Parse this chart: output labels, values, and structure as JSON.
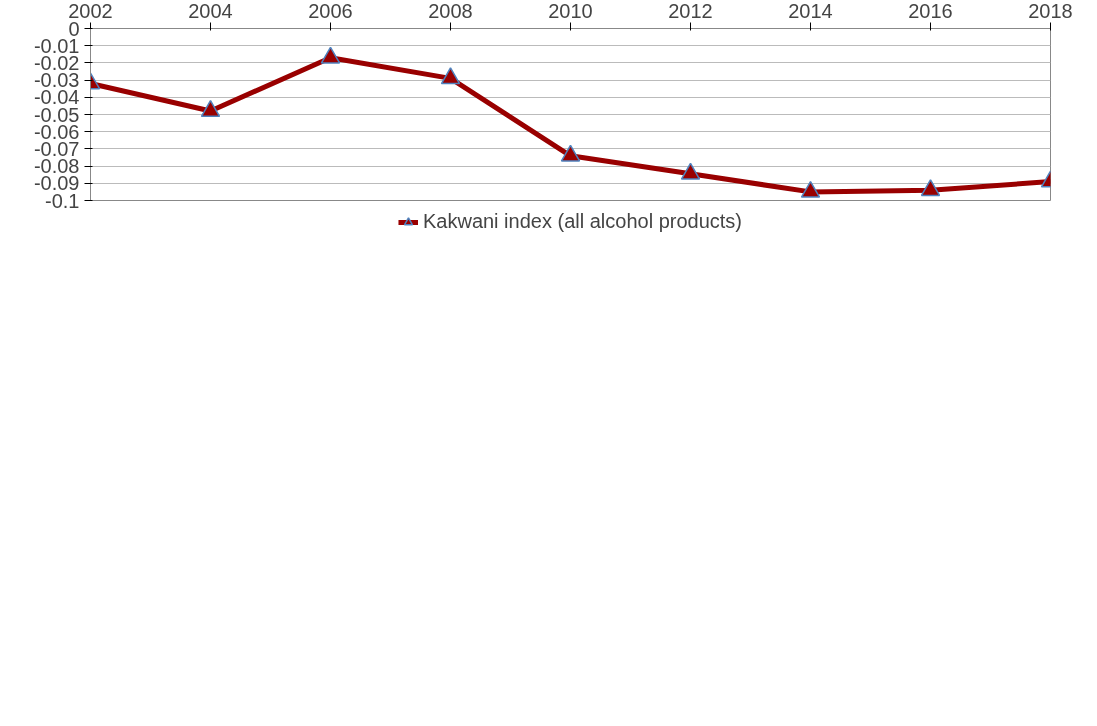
{
  "chart_data": {
    "type": "line",
    "x": [
      2002,
      2004,
      2006,
      2008,
      2010,
      2012,
      2014,
      2016,
      2018
    ],
    "series": [
      {
        "name": "Kakwani index (all alcohol products)",
        "color": "#990000",
        "values": [
          -0.032,
          -0.048,
          -0.017,
          -0.029,
          -0.074,
          -0.0845,
          -0.095,
          -0.094,
          -0.089
        ]
      }
    ],
    "xlim": [
      2002,
      2018
    ],
    "xticks": [
      2002,
      2004,
      2006,
      2008,
      2010,
      2012,
      2014,
      2016,
      2018
    ],
    "ylim": [
      -0.1,
      0
    ],
    "yticks": [
      0,
      -0.01,
      -0.02,
      -0.03,
      -0.04,
      -0.05,
      -0.06,
      -0.07,
      -0.08,
      -0.09,
      -0.1
    ],
    "grid": "y",
    "legend": "bottom",
    "marker": "triangle",
    "line_style": "solid"
  }
}
